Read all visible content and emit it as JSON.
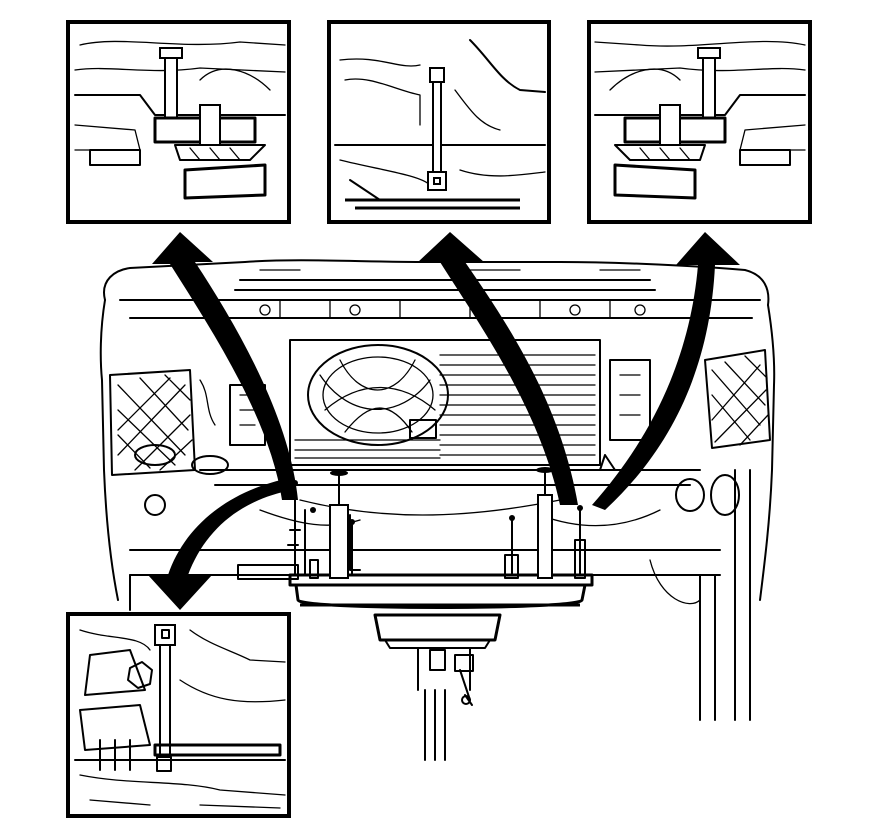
{
  "diagram": {
    "description_visible_text": "",
    "colors": {
      "line": "#000000",
      "background": "#ffffff"
    },
    "callouts": [
      {
        "id": "detail-front-left",
        "icon": "support-pin-detail"
      },
      {
        "id": "detail-center",
        "icon": "support-rod-detail"
      },
      {
        "id": "detail-front-right",
        "icon": "support-pin-detail"
      },
      {
        "id": "detail-rear-left",
        "icon": "support-bracket-detail"
      }
    ]
  }
}
